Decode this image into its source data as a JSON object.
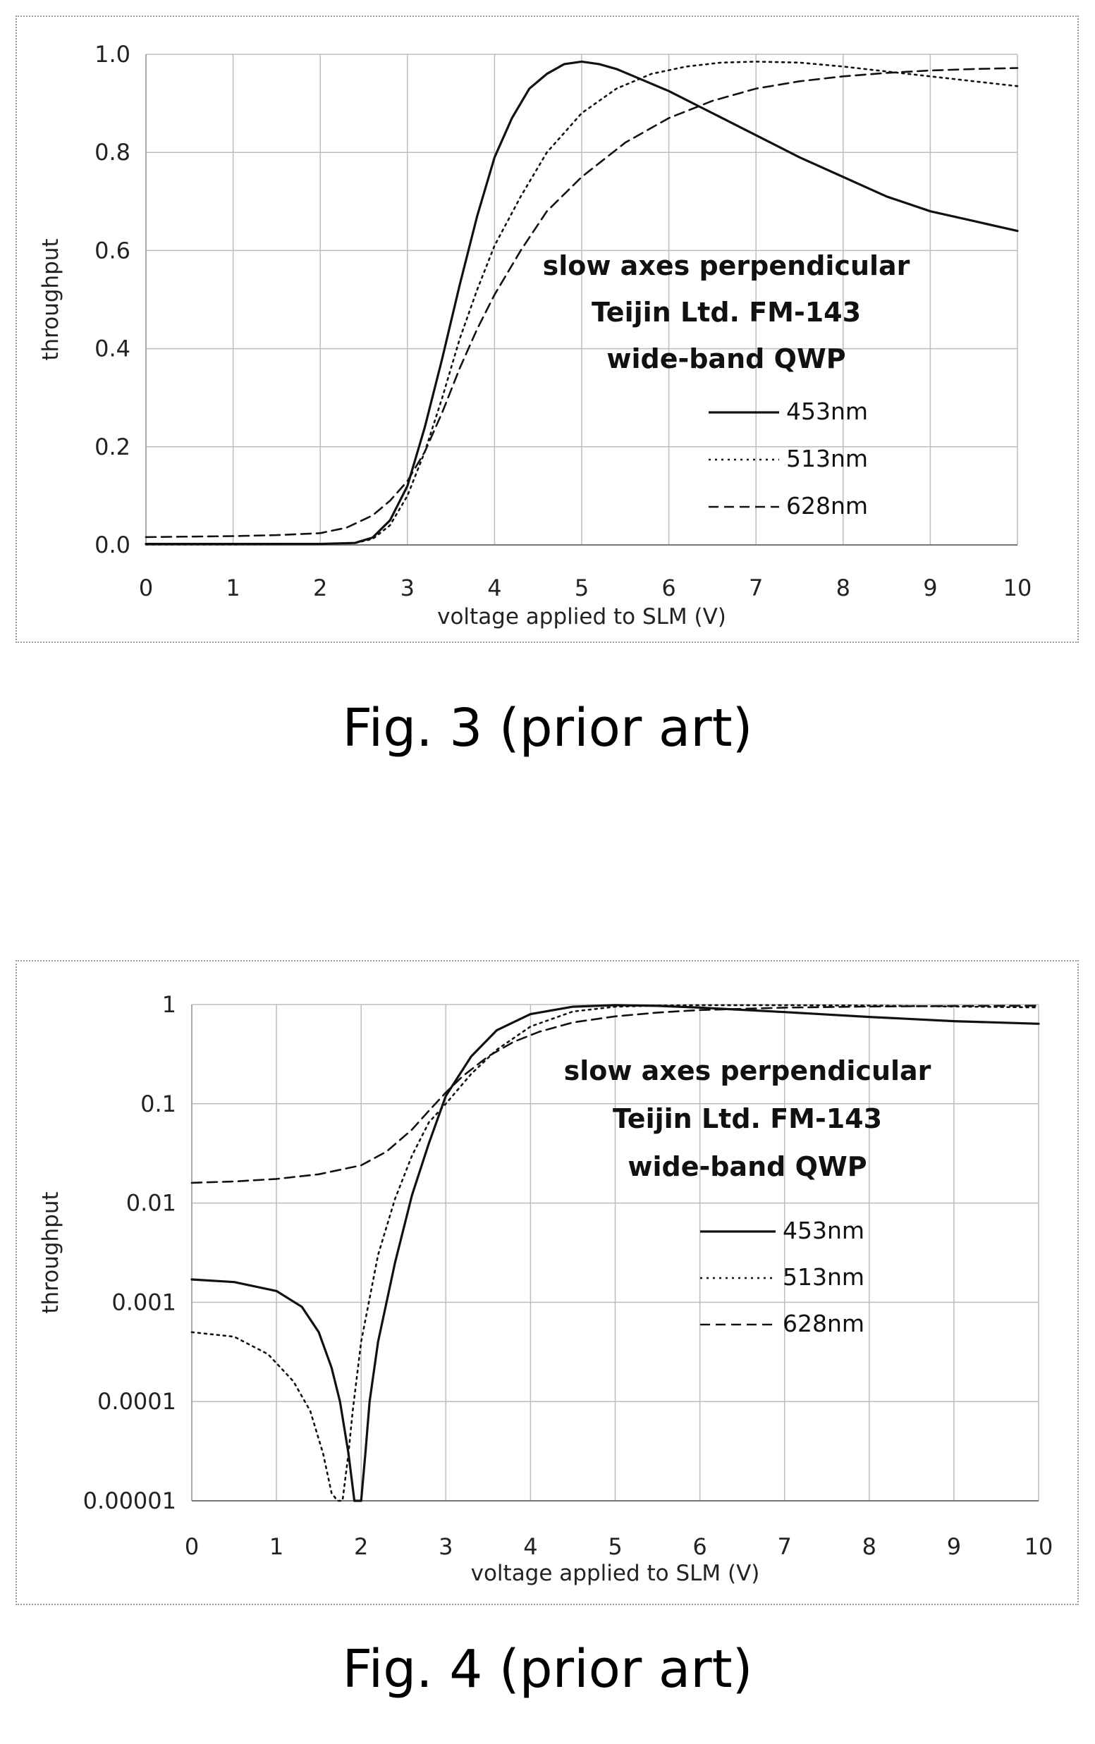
{
  "figures": [
    {
      "caption": "Fig. 3 (prior art)"
    },
    {
      "caption": "Fig. 4 (prior art)"
    }
  ],
  "chart_data": [
    {
      "type": "line",
      "title": "",
      "xlabel": "voltage applied to SLM (V)",
      "ylabel": "throughput",
      "xlim": [
        0,
        10
      ],
      "ylim": [
        0,
        1.0
      ],
      "yscale": "linear",
      "grid": true,
      "x_ticks": [
        "0",
        "1",
        "2",
        "3",
        "4",
        "5",
        "6",
        "7",
        "8",
        "9",
        "10"
      ],
      "y_ticks": [
        "0.0",
        "0.2",
        "0.4",
        "0.6",
        "0.8",
        "1.0"
      ],
      "annotation": [
        "slow axes perpendicular",
        "Teijin Ltd. FM-143",
        "wide-band QWP"
      ],
      "legend_position": "right",
      "series": [
        {
          "name": "453nm",
          "style": "solid",
          "x": [
            0,
            1,
            2,
            2.4,
            2.6,
            2.8,
            3.0,
            3.2,
            3.4,
            3.6,
            3.8,
            4.0,
            4.2,
            4.4,
            4.6,
            4.8,
            5.0,
            5.2,
            5.4,
            5.6,
            6.0,
            6.5,
            7.0,
            7.5,
            8.0,
            8.5,
            9.0,
            9.5,
            10.0
          ],
          "y": [
            0.002,
            0.002,
            0.002,
            0.004,
            0.015,
            0.05,
            0.12,
            0.24,
            0.38,
            0.53,
            0.67,
            0.79,
            0.87,
            0.93,
            0.96,
            0.98,
            0.985,
            0.98,
            0.97,
            0.955,
            0.925,
            0.88,
            0.835,
            0.79,
            0.75,
            0.71,
            0.68,
            0.66,
            0.64
          ]
        },
        {
          "name": "513nm",
          "style": "dotted",
          "x": [
            0,
            1,
            2,
            2.4,
            2.6,
            2.8,
            3.0,
            3.2,
            3.4,
            3.6,
            3.8,
            4.0,
            4.3,
            4.6,
            5.0,
            5.4,
            5.8,
            6.2,
            6.6,
            7.0,
            7.5,
            8.0,
            8.5,
            9.0,
            9.5,
            10.0
          ],
          "y": [
            0.001,
            0.001,
            0.002,
            0.004,
            0.012,
            0.04,
            0.1,
            0.19,
            0.3,
            0.42,
            0.52,
            0.61,
            0.71,
            0.8,
            0.88,
            0.93,
            0.96,
            0.975,
            0.983,
            0.985,
            0.983,
            0.975,
            0.965,
            0.955,
            0.945,
            0.935
          ]
        },
        {
          "name": "628nm",
          "style": "dashed",
          "x": [
            0,
            1,
            1.5,
            2.0,
            2.3,
            2.6,
            2.8,
            3.0,
            3.2,
            3.4,
            3.6,
            3.8,
            4.0,
            4.3,
            4.6,
            5.0,
            5.5,
            6.0,
            6.5,
            7.0,
            7.5,
            8.0,
            8.5,
            9.0,
            9.5,
            10.0
          ],
          "y": [
            0.016,
            0.018,
            0.02,
            0.024,
            0.035,
            0.06,
            0.09,
            0.13,
            0.19,
            0.27,
            0.36,
            0.44,
            0.51,
            0.6,
            0.68,
            0.75,
            0.82,
            0.87,
            0.905,
            0.93,
            0.945,
            0.955,
            0.962,
            0.967,
            0.97,
            0.972
          ]
        }
      ]
    },
    {
      "type": "line",
      "title": "",
      "xlabel": "voltage applied to SLM (V)",
      "ylabel": "throughput",
      "xlim": [
        0,
        10
      ],
      "ylim": [
        1e-05,
        1
      ],
      "yscale": "log",
      "grid": true,
      "x_ticks": [
        "0",
        "1",
        "2",
        "3",
        "4",
        "5",
        "6",
        "7",
        "8",
        "9",
        "10"
      ],
      "y_ticks": [
        "0.00001",
        "0.0001",
        "0.001",
        "0.01",
        "0.1",
        "1"
      ],
      "annotation": [
        "slow axes perpendicular",
        "Teijin Ltd. FM-143",
        "wide-band QWP"
      ],
      "legend_position": "right",
      "series": [
        {
          "name": "453nm",
          "style": "solid",
          "x": [
            0,
            0.5,
            1.0,
            1.3,
            1.5,
            1.65,
            1.75,
            1.85,
            1.92,
            1.97,
            2.0,
            2.05,
            2.1,
            2.2,
            2.4,
            2.6,
            2.8,
            3.0,
            3.3,
            3.6,
            4.0,
            4.5,
            5.0,
            5.5,
            6.0,
            7.0,
            8.0,
            9.0,
            10.0
          ],
          "y": [
            0.0017,
            0.0016,
            0.0013,
            0.0009,
            0.0005,
            0.00022,
            0.0001,
            3e-05,
            1e-05,
            1e-05,
            1e-05,
            3e-05,
            0.0001,
            0.0004,
            0.0025,
            0.012,
            0.04,
            0.12,
            0.3,
            0.55,
            0.8,
            0.95,
            0.985,
            0.97,
            0.93,
            0.84,
            0.75,
            0.68,
            0.64
          ]
        },
        {
          "name": "513nm",
          "style": "dotted",
          "x": [
            0,
            0.5,
            0.9,
            1.2,
            1.4,
            1.55,
            1.65,
            1.72,
            1.78,
            1.85,
            1.9,
            2.0,
            2.2,
            2.4,
            2.6,
            2.8,
            3.0,
            3.3,
            3.6,
            4.0,
            4.5,
            5.0,
            5.5,
            6.0,
            7.0,
            8.0,
            9.0,
            10.0
          ],
          "y": [
            0.0005,
            0.00045,
            0.0003,
            0.00016,
            8e-05,
            3e-05,
            1.2e-05,
            1e-05,
            1e-05,
            3e-05,
            8e-05,
            0.0004,
            0.003,
            0.011,
            0.03,
            0.065,
            0.1,
            0.2,
            0.35,
            0.6,
            0.85,
            0.95,
            0.975,
            0.985,
            0.985,
            0.975,
            0.955,
            0.935
          ]
        },
        {
          "name": "628nm",
          "style": "dashed",
          "x": [
            0,
            0.5,
            1.0,
            1.5,
            2.0,
            2.3,
            2.6,
            2.8,
            3.0,
            3.2,
            3.5,
            3.8,
            4.1,
            4.5,
            5.0,
            5.5,
            6.0,
            7.0,
            8.0,
            9.0,
            10.0
          ],
          "y": [
            0.016,
            0.0165,
            0.0175,
            0.0195,
            0.024,
            0.033,
            0.055,
            0.085,
            0.13,
            0.19,
            0.3,
            0.42,
            0.53,
            0.66,
            0.76,
            0.83,
            0.88,
            0.93,
            0.955,
            0.967,
            0.972
          ]
        }
      ]
    }
  ]
}
